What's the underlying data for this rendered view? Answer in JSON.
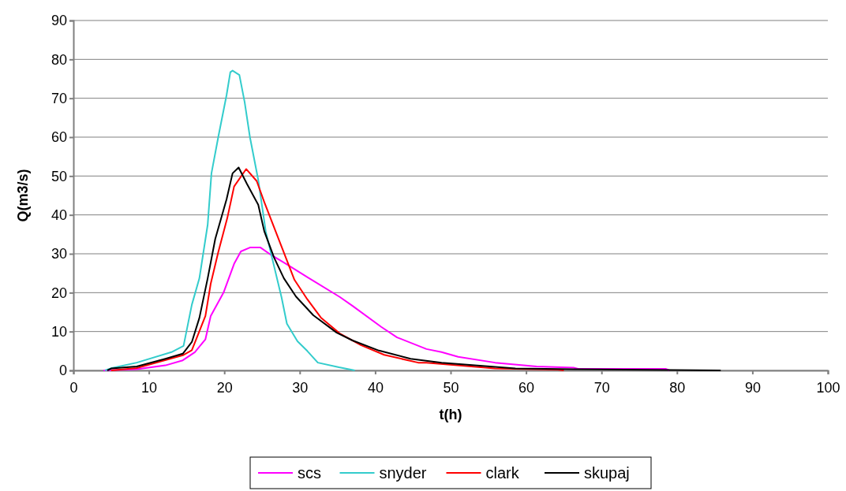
{
  "chart_data": {
    "type": "line",
    "xlabel": "t(h)",
    "ylabel": "Q(m3/s)",
    "xlim": [
      0,
      100
    ],
    "ylim": [
      0,
      90
    ],
    "xticks": [
      0,
      10,
      20,
      30,
      40,
      50,
      60,
      70,
      80,
      90,
      100
    ],
    "yticks": [
      0,
      10,
      20,
      30,
      40,
      50,
      60,
      70,
      80,
      90
    ],
    "grid": "y",
    "legend": "bottom",
    "marker": "none",
    "line_style": "solid",
    "series": [
      {
        "name": "scs",
        "color": "#ff00ff",
        "x": [
          4,
          8.4,
          12.2,
          14.5,
          16.1,
          17.5,
          18.2,
          19.9,
          21.3,
          22.2,
          23.4,
          24.8,
          26.2,
          28.2,
          31,
          35.3,
          37,
          40.8,
          42.9,
          46.8,
          48.8,
          51,
          55.9,
          61.4,
          66.3,
          66.9,
          78.5,
          79
        ],
        "values": [
          0,
          0.3,
          1.3,
          2.6,
          4.7,
          8,
          14,
          20,
          27.4,
          30.6,
          31.6,
          31.6,
          29.7,
          27.4,
          24,
          18.9,
          16.6,
          11.2,
          8.5,
          5.5,
          4.7,
          3.5,
          2,
          1,
          0.7,
          0.4,
          0.4,
          0
        ]
      },
      {
        "name": "snyder",
        "color": "#33cccc",
        "x": [
          4.2,
          5.1,
          8.4,
          13,
          14.6,
          15.7,
          16.7,
          17.8,
          18.3,
          19.2,
          20.3,
          20.8,
          21.1,
          22,
          22.7,
          23.4,
          24.5,
          25.5,
          27.6,
          28.3,
          29.7,
          31,
          32.4,
          35.2,
          37.3
        ],
        "values": [
          0,
          0.6,
          2,
          4.7,
          6.3,
          16.9,
          23.7,
          37.5,
          50.7,
          60,
          70.8,
          76.7,
          77.1,
          76,
          69,
          60,
          49,
          35.7,
          18.7,
          12,
          7.5,
          5,
          2,
          0.8,
          0
        ]
      },
      {
        "name": "clark",
        "color": "#ff0000",
        "x": [
          5,
          8.4,
          14.5,
          15.7,
          17.5,
          18.2,
          19.2,
          20.4,
          21.3,
          22.9,
          24.3,
          25.3,
          27.6,
          29.3,
          31,
          32.8,
          35.3,
          38.1,
          41.2,
          45.7,
          46.8,
          55.9,
          64.2,
          65
        ],
        "values": [
          0,
          0.6,
          3.9,
          5.2,
          14,
          22.3,
          30.4,
          39.2,
          47.3,
          51.8,
          48.7,
          43.3,
          31.8,
          23.3,
          18.3,
          13.6,
          9.5,
          6.5,
          4,
          2,
          2,
          0.5,
          0.2,
          0
        ]
      },
      {
        "name": "skupaj",
        "color": "#000000",
        "x": [
          4.5,
          5,
          8.4,
          12.2,
          14.5,
          15.7,
          16.7,
          17.8,
          18.8,
          20.3,
          21.1,
          21.9,
          23,
          24.5,
          25.3,
          26.6,
          27.9,
          29.5,
          31.8,
          34.9,
          37,
          40.5,
          44.7,
          48.8,
          58.6,
          66.3,
          85.8
        ],
        "values": [
          0,
          0.5,
          1,
          3,
          4.3,
          7.3,
          13.5,
          23.7,
          33.8,
          44,
          50.7,
          52.2,
          48,
          42.6,
          35.8,
          29,
          23.7,
          19,
          14.2,
          9.7,
          7.7,
          5.1,
          3,
          2,
          0.5,
          0.3,
          0
        ]
      }
    ]
  }
}
